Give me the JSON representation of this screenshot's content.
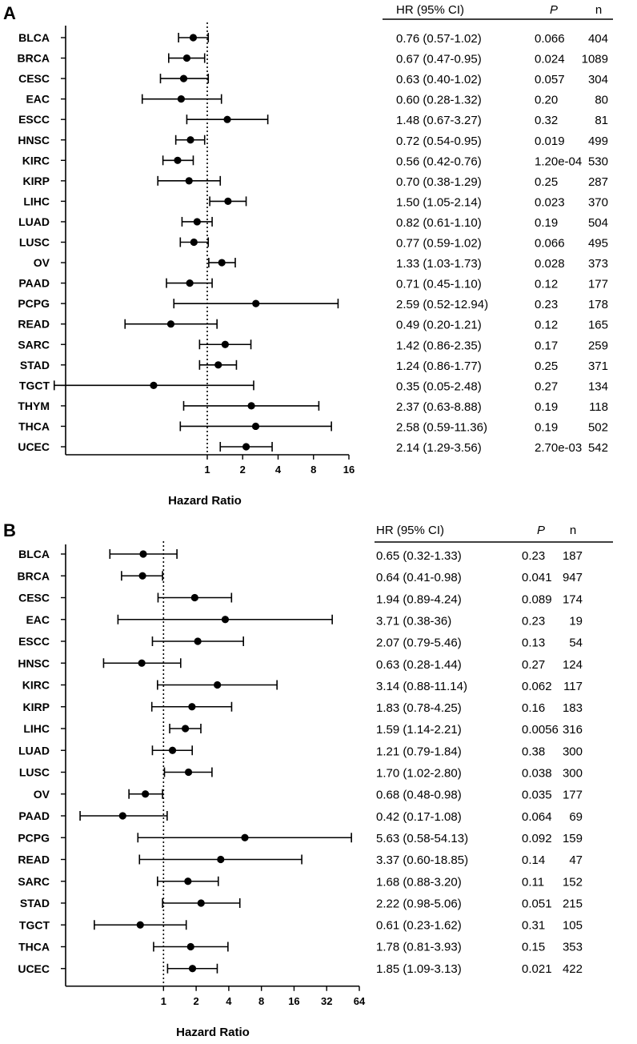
{
  "chart_data": [
    {
      "type": "forest",
      "panel_label": "A",
      "xlabel": "Hazard Ratio",
      "x_scale": "log2",
      "xlim": [
        0.0625,
        16
      ],
      "x_ticks": [
        1,
        2,
        4,
        8,
        16
      ],
      "reference_line": 1,
      "table_headers": {
        "hr": "HR (95% CI)",
        "p": "P",
        "n": "n"
      },
      "categories": [
        "BLCA",
        "BRCA",
        "CESC",
        "EAC",
        "ESCC",
        "HNSC",
        "KIRC",
        "KIRP",
        "LIHC",
        "LUAD",
        "LUSC",
        "OV",
        "PAAD",
        "PCPG",
        "READ",
        "SARC",
        "STAD",
        "TGCT",
        "THYM",
        "THCA",
        "UCEC"
      ],
      "hr": [
        0.76,
        0.67,
        0.63,
        0.6,
        1.48,
        0.72,
        0.56,
        0.7,
        1.5,
        0.82,
        0.77,
        1.33,
        0.71,
        2.59,
        0.49,
        1.42,
        1.24,
        0.35,
        2.37,
        2.58,
        2.14
      ],
      "lower": [
        0.57,
        0.47,
        0.4,
        0.28,
        0.67,
        0.54,
        0.42,
        0.38,
        1.05,
        0.61,
        0.59,
        1.03,
        0.45,
        0.52,
        0.2,
        0.86,
        0.86,
        0.05,
        0.63,
        0.59,
        1.29
      ],
      "upper": [
        1.02,
        0.95,
        1.02,
        1.32,
        3.27,
        0.95,
        0.76,
        1.29,
        2.14,
        1.1,
        1.02,
        1.73,
        1.1,
        12.94,
        1.21,
        2.35,
        1.77,
        2.48,
        8.88,
        11.36,
        3.56
      ],
      "hr_text": [
        "0.76 (0.57-1.02)",
        "0.67 (0.47-0.95)",
        "0.63 (0.40-1.02)",
        "0.60 (0.28-1.32)",
        "1.48 (0.67-3.27)",
        "0.72 (0.54-0.95)",
        "0.56 (0.42-0.76)",
        "0.70 (0.38-1.29)",
        "1.50 (1.05-2.14)",
        "0.82 (0.61-1.10)",
        "0.77 (0.59-1.02)",
        "1.33 (1.03-1.73)",
        "0.71 (0.45-1.10)",
        "2.59 (0.52-12.94)",
        "0.49 (0.20-1.21)",
        "1.42 (0.86-2.35)",
        "1.24 (0.86-1.77)",
        "0.35 (0.05-2.48)",
        "2.37 (0.63-8.88)",
        "2.58 (0.59-11.36)",
        "2.14 (1.29-3.56)"
      ],
      "p": [
        "0.066",
        "0.024",
        "0.057",
        "0.20",
        "0.32",
        "0.019",
        "1.20e-04",
        "0.25",
        "0.023",
        "0.19",
        "0.066",
        "0.028",
        "0.12",
        "0.23",
        "0.12",
        "0.17",
        "0.25",
        "0.27",
        "0.19",
        "0.19",
        "2.70e-03"
      ],
      "n": [
        "404",
        "1089",
        "304",
        "80",
        "81",
        "499",
        "530",
        "287",
        "370",
        "504",
        "495",
        "373",
        "177",
        "178",
        "165",
        "259",
        "371",
        "134",
        "118",
        "502",
        "542"
      ]
    },
    {
      "type": "forest",
      "panel_label": "B",
      "xlabel": "Hazard Ratio",
      "x_scale": "log2",
      "xlim": [
        0.125,
        64
      ],
      "x_ticks": [
        1,
        2,
        4,
        8,
        16,
        32,
        64
      ],
      "reference_line": 1,
      "table_headers": {
        "hr": "HR (95% CI)",
        "p": "P",
        "n": "n"
      },
      "categories": [
        "BLCA",
        "BRCA",
        "CESC",
        "EAC",
        "ESCC",
        "HNSC",
        "KIRC",
        "KIRP",
        "LIHC",
        "LUAD",
        "LUSC",
        "OV",
        "PAAD",
        "PCPG",
        "READ",
        "SARC",
        "STAD",
        "TGCT",
        "THCA",
        "UCEC"
      ],
      "hr": [
        0.65,
        0.64,
        1.94,
        3.71,
        2.07,
        0.63,
        3.14,
        1.83,
        1.59,
        1.21,
        1.7,
        0.68,
        0.42,
        5.63,
        3.37,
        1.68,
        2.22,
        0.61,
        1.78,
        1.85
      ],
      "lower": [
        0.32,
        0.41,
        0.89,
        0.38,
        0.79,
        0.28,
        0.88,
        0.78,
        1.14,
        0.79,
        1.02,
        0.48,
        0.17,
        0.58,
        0.6,
        0.88,
        0.98,
        0.23,
        0.81,
        1.09
      ],
      "upper": [
        1.33,
        0.98,
        4.24,
        36,
        5.46,
        1.44,
        11.14,
        4.25,
        2.21,
        1.84,
        2.8,
        0.98,
        1.08,
        54.13,
        18.85,
        3.2,
        5.06,
        1.62,
        3.93,
        3.13
      ],
      "hr_text": [
        "0.65 (0.32-1.33)",
        "0.64 (0.41-0.98)",
        "1.94 (0.89-4.24)",
        "3.71 (0.38-36)",
        "2.07 (0.79-5.46)",
        "0.63 (0.28-1.44)",
        "3.14 (0.88-11.14)",
        "1.83 (0.78-4.25)",
        "1.59 (1.14-2.21)",
        "1.21 (0.79-1.84)",
        "1.70 (1.02-2.80)",
        "0.68 (0.48-0.98)",
        "0.42 (0.17-1.08)",
        "5.63 (0.58-54.13)",
        "3.37 (0.60-18.85)",
        "1.68 (0.88-3.20)",
        "2.22 (0.98-5.06)",
        "0.61 (0.23-1.62)",
        "1.78 (0.81-3.93)",
        "1.85 (1.09-3.13)"
      ],
      "p": [
        "0.23",
        "0.041",
        "0.089",
        "0.23",
        "0.13",
        "0.27",
        "0.062",
        "0.16",
        "0.0056",
        "0.38",
        "0.038",
        "0.035",
        "0.064",
        "0.092",
        "0.14",
        "0.11",
        "0.051",
        "0.31",
        "0.15",
        "0.021"
      ],
      "n": [
        "187",
        "947",
        "174",
        "19",
        "54",
        "124",
        "117",
        "183",
        "316",
        "300",
        "300",
        "177",
        "69",
        "159",
        "47",
        "152",
        "215",
        "105",
        "353",
        "422"
      ]
    }
  ]
}
